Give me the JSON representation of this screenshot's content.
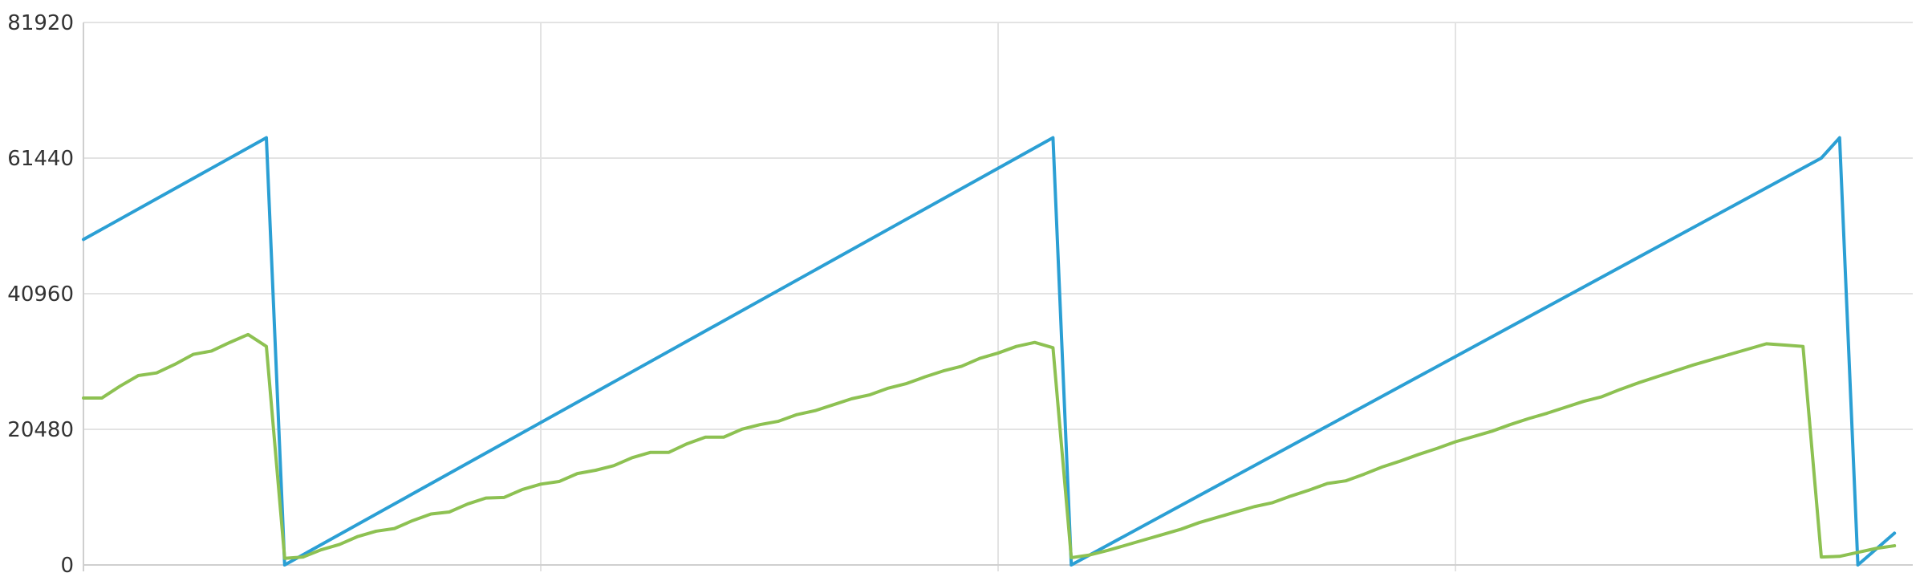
{
  "chart_data": {
    "type": "line",
    "ylim": [
      0,
      81920
    ],
    "yticks": [
      "0",
      "20480",
      "40960",
      "61440",
      "81920"
    ],
    "xlim": [
      0,
      100
    ],
    "x_grid_positions": [
      0,
      25,
      50,
      75
    ],
    "grid": true,
    "legend": "none",
    "series": [
      {
        "color": "#2b9fd4",
        "x": [
          0,
          10,
          11,
          53,
          54,
          95,
          96,
          97,
          99
        ],
        "values": [
          49152,
          64512,
          0,
          64512,
          0,
          61440,
          64512,
          0,
          4800
        ]
      },
      {
        "color": "#8dc152",
        "x": [
          0,
          1,
          2,
          3,
          4,
          5,
          6,
          7,
          8,
          9,
          10,
          11,
          12,
          13,
          14,
          15,
          16,
          17,
          18,
          19,
          20,
          21,
          22,
          23,
          24,
          25,
          26,
          27,
          28,
          29,
          30,
          31,
          32,
          33,
          34,
          35,
          36,
          37,
          38,
          39,
          40,
          41,
          42,
          43,
          44,
          45,
          46,
          47,
          48,
          49,
          50,
          51,
          52,
          53,
          54,
          55,
          56,
          57,
          58,
          59,
          60,
          61,
          62,
          63,
          64,
          65,
          66,
          67,
          68,
          69,
          70,
          71,
          72,
          73,
          74,
          75,
          76,
          77,
          78,
          79,
          80,
          81,
          82,
          83,
          84,
          85,
          86,
          87,
          88,
          89,
          90,
          91,
          92,
          93,
          94,
          95,
          96,
          97,
          98,
          99
        ],
        "values": [
          25200,
          25200,
          27000,
          28600,
          29000,
          30300,
          31800,
          32300,
          33600,
          34800,
          33000,
          1000,
          1200,
          2300,
          3100,
          4300,
          5100,
          5500,
          6700,
          7700,
          8000,
          9200,
          10100,
          10200,
          11400,
          12200,
          12600,
          13800,
          14300,
          15000,
          16200,
          17000,
          17000,
          18300,
          19300,
          19300,
          20500,
          21200,
          21700,
          22700,
          23300,
          24200,
          25100,
          25700,
          26700,
          27400,
          28400,
          29300,
          30000,
          31200,
          32000,
          33000,
          33600,
          32800,
          1100,
          1500,
          2200,
          3000,
          3800,
          4600,
          5400,
          6400,
          7200,
          8000,
          8800,
          9400,
          10400,
          11300,
          12300,
          12700,
          13700,
          14800,
          15700,
          16700,
          17600,
          18600,
          19400,
          20200,
          21200,
          22100,
          22900,
          23800,
          24700,
          25400,
          26500,
          27500,
          28400,
          29300,
          30200,
          31000,
          31800,
          32600,
          33400,
          33200,
          33000,
          1200,
          1300,
          1900,
          2500,
          2900
        ]
      }
    ]
  }
}
